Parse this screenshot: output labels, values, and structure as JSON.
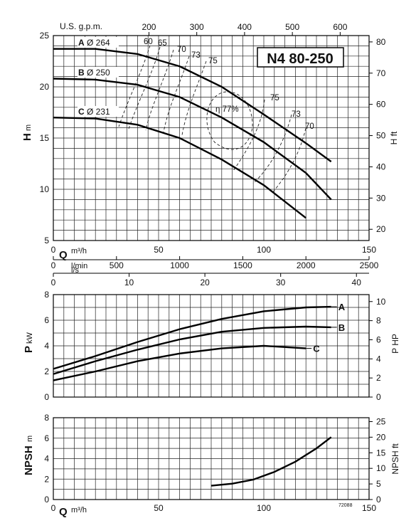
{
  "chart_data": [
    {
      "type": "line",
      "panel": "head",
      "title": "N4 80-250",
      "ylabel_main": "H",
      "ylabel_unit": "m",
      "ylabel_right": "H ft",
      "ylim": [
        5,
        25
      ],
      "y_ticks": [
        5,
        10,
        15,
        20,
        25
      ],
      "y_right_ticks": [
        20,
        30,
        40,
        50,
        60,
        70,
        80
      ],
      "xlim": [
        0,
        150
      ],
      "top_axis_label": "U.S. g.p.m.",
      "top_axis_ticks": [
        200,
        300,
        400,
        500,
        600
      ],
      "grid": true,
      "series": [
        {
          "name": "A",
          "diameter": "Ø 264",
          "x": [
            0,
            20,
            40,
            60,
            80,
            100,
            120,
            132
          ],
          "y": [
            23.7,
            23.7,
            23.2,
            22.0,
            20.0,
            17.3,
            14.5,
            12.7
          ]
        },
        {
          "name": "B",
          "diameter": "Ø 250",
          "x": [
            0,
            20,
            40,
            60,
            80,
            100,
            120,
            132
          ],
          "y": [
            20.8,
            20.7,
            20.2,
            19.0,
            17.0,
            14.6,
            11.6,
            9.0
          ]
        },
        {
          "name": "C",
          "diameter": "Ø 231",
          "x": [
            0,
            20,
            40,
            60,
            80,
            100,
            120
          ],
          "y": [
            17.0,
            16.9,
            16.3,
            15.0,
            12.9,
            10.4,
            7.2
          ]
        }
      ],
      "efficiency_labels": [
        "60",
        "65",
        "70",
        "73",
        "75",
        "η 77%",
        "75",
        "73",
        "70"
      ]
    },
    {
      "type": "line",
      "panel": "flow_axes",
      "q_label": "Q",
      "q_unit": "m³/h",
      "q_ticks": [
        0,
        50,
        100,
        150
      ],
      "lmin_label": "l/min",
      "lmin_ticks": [
        0,
        500,
        1000,
        1500,
        2000,
        2500
      ],
      "ls_label": "l/s",
      "ls_ticks": [
        0,
        10,
        20,
        30,
        40
      ]
    },
    {
      "type": "line",
      "panel": "power",
      "ylabel_main": "P",
      "ylabel_unit": "kW",
      "ylabel_right": "P HP",
      "ylim": [
        0,
        8
      ],
      "y_ticks": [
        0,
        2,
        4,
        6,
        8
      ],
      "y_right_ticks": [
        0,
        2,
        4,
        6,
        8,
        10
      ],
      "series": [
        {
          "name": "A",
          "x": [
            0,
            20,
            40,
            60,
            80,
            100,
            120,
            132
          ],
          "y": [
            2.2,
            3.2,
            4.3,
            5.3,
            6.1,
            6.7,
            7.0,
            7.05
          ]
        },
        {
          "name": "B",
          "x": [
            0,
            20,
            40,
            60,
            80,
            100,
            120,
            132
          ],
          "y": [
            1.8,
            2.8,
            3.7,
            4.5,
            5.1,
            5.4,
            5.5,
            5.45
          ]
        },
        {
          "name": "C",
          "x": [
            0,
            20,
            40,
            60,
            80,
            100,
            120
          ],
          "y": [
            1.3,
            2.0,
            2.8,
            3.4,
            3.8,
            4.0,
            3.8
          ]
        }
      ]
    },
    {
      "type": "line",
      "panel": "npsh",
      "ylabel_main": "NPSH",
      "ylabel_unit": "m",
      "ylabel_right": "NPSH ft",
      "ylim": [
        0,
        8
      ],
      "y_ticks": [
        0,
        2,
        4,
        6,
        8
      ],
      "y_right_ticks": [
        0,
        5,
        10,
        15,
        20,
        25
      ],
      "xlim": [
        0,
        150
      ],
      "x_ticks": [
        0,
        50,
        100,
        150
      ],
      "x_label": "Q",
      "x_unit": "m³/h",
      "code": "72088",
      "series": [
        {
          "name": "NPSH",
          "x": [
            75,
            85,
            95,
            105,
            115,
            125,
            132
          ],
          "y": [
            1.35,
            1.55,
            1.95,
            2.7,
            3.7,
            5.0,
            6.1
          ]
        }
      ]
    }
  ]
}
